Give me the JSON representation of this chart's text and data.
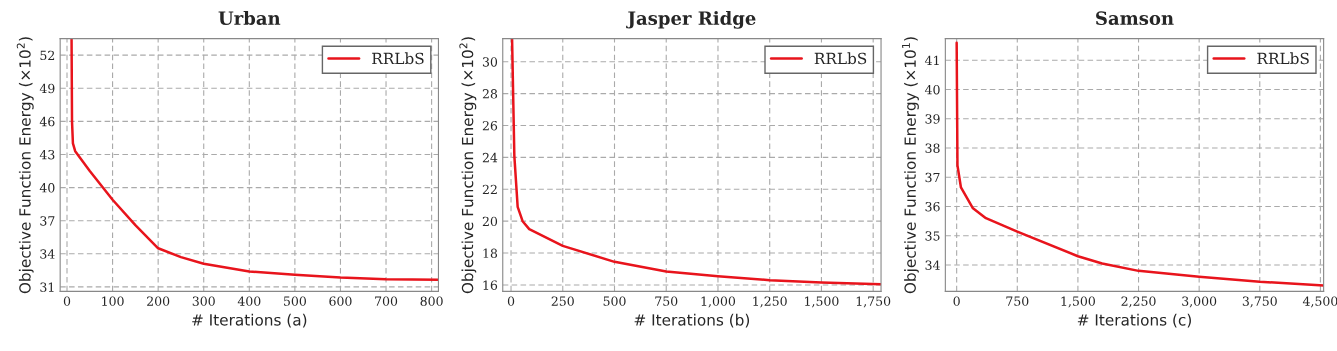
{
  "chart_data": [
    {
      "type": "line",
      "title": "Urban",
      "xlabel": "# Iterations (a)",
      "ylabel": "Objective Function Energy (×10$^{2}$)",
      "grid": true,
      "legend": "top right",
      "line_style": "solid",
      "xlim": [
        -15,
        815
      ],
      "ylim": [
        30.6,
        53.5
      ],
      "xticks": [
        0,
        100,
        200,
        300,
        400,
        500,
        600,
        700,
        800
      ],
      "yticks": [
        31,
        34,
        37,
        40,
        43,
        46,
        49,
        52
      ],
      "x": [
        10,
        11,
        13,
        18,
        50,
        100,
        150,
        200,
        250,
        300,
        400,
        500,
        600,
        700,
        815
      ],
      "series": [
        {
          "name": "RRLbS",
          "color": "#e8141c",
          "values": [
            53.5,
            46,
            44,
            43.3,
            41.5,
            38.9,
            36.6,
            34.5,
            33.7,
            33.1,
            32.4,
            32.1,
            31.85,
            31.7,
            31.65
          ]
        }
      ]
    },
    {
      "type": "line",
      "title": "Jasper Ridge",
      "xlabel": "# Iterations (b)",
      "ylabel": "Objective Function Energy (×10$^{2}$)",
      "grid": true,
      "legend": "top right",
      "line_style": "solid",
      "xlim": [
        -40,
        1788
      ],
      "ylim": [
        15.6,
        31.45
      ],
      "xticks": [
        0,
        250,
        500,
        750,
        {
          "value": 1000,
          "label": "1,000"
        },
        {
          "value": 1250,
          "label": "1,250"
        },
        {
          "value": 1500,
          "label": "1,500"
        },
        {
          "value": 1750,
          "label": "1,750"
        }
      ],
      "yticks": [
        16,
        18,
        20,
        22,
        24,
        26,
        28,
        30
      ],
      "x": [
        5,
        16,
        32,
        56,
        88,
        250,
        500,
        750,
        1000,
        1250,
        1500,
        1788
      ],
      "series": [
        {
          "name": "RRLbS",
          "color": "#e8141c",
          "values": [
            31.45,
            24.1,
            20.9,
            20.0,
            19.5,
            18.45,
            17.45,
            16.85,
            16.55,
            16.3,
            16.15,
            16.05
          ]
        }
      ]
    },
    {
      "type": "line",
      "title": "Samson",
      "xlabel": "# Iterations (c)",
      "ylabel": "Objective Function Energy (×10$^{1}$)",
      "grid": true,
      "legend": "top right",
      "line_style": "solid",
      "xlim": [
        -140,
        4540
      ],
      "ylim": [
        33.1,
        41.74
      ],
      "xticks": [
        0,
        750,
        {
          "value": 1500,
          "label": "1,500"
        },
        {
          "value": 2250,
          "label": "2,250"
        },
        {
          "value": 3000,
          "label": "3,000"
        },
        {
          "value": 3750,
          "label": "3,750"
        },
        {
          "value": 4500,
          "label": "4,500"
        }
      ],
      "yticks": [
        34,
        35,
        36,
        37,
        38,
        39,
        40,
        41
      ],
      "x": [
        0,
        10,
        53,
        198,
        362,
        750,
        1500,
        1800,
        2250,
        3000,
        3750,
        4540
      ],
      "series": [
        {
          "name": "RRLbS",
          "color": "#e8141c",
          "values": [
            41.6,
            37.4,
            36.65,
            35.95,
            35.6,
            35.14,
            34.3,
            34.05,
            33.8,
            33.6,
            33.43,
            33.3
          ]
        }
      ]
    }
  ]
}
